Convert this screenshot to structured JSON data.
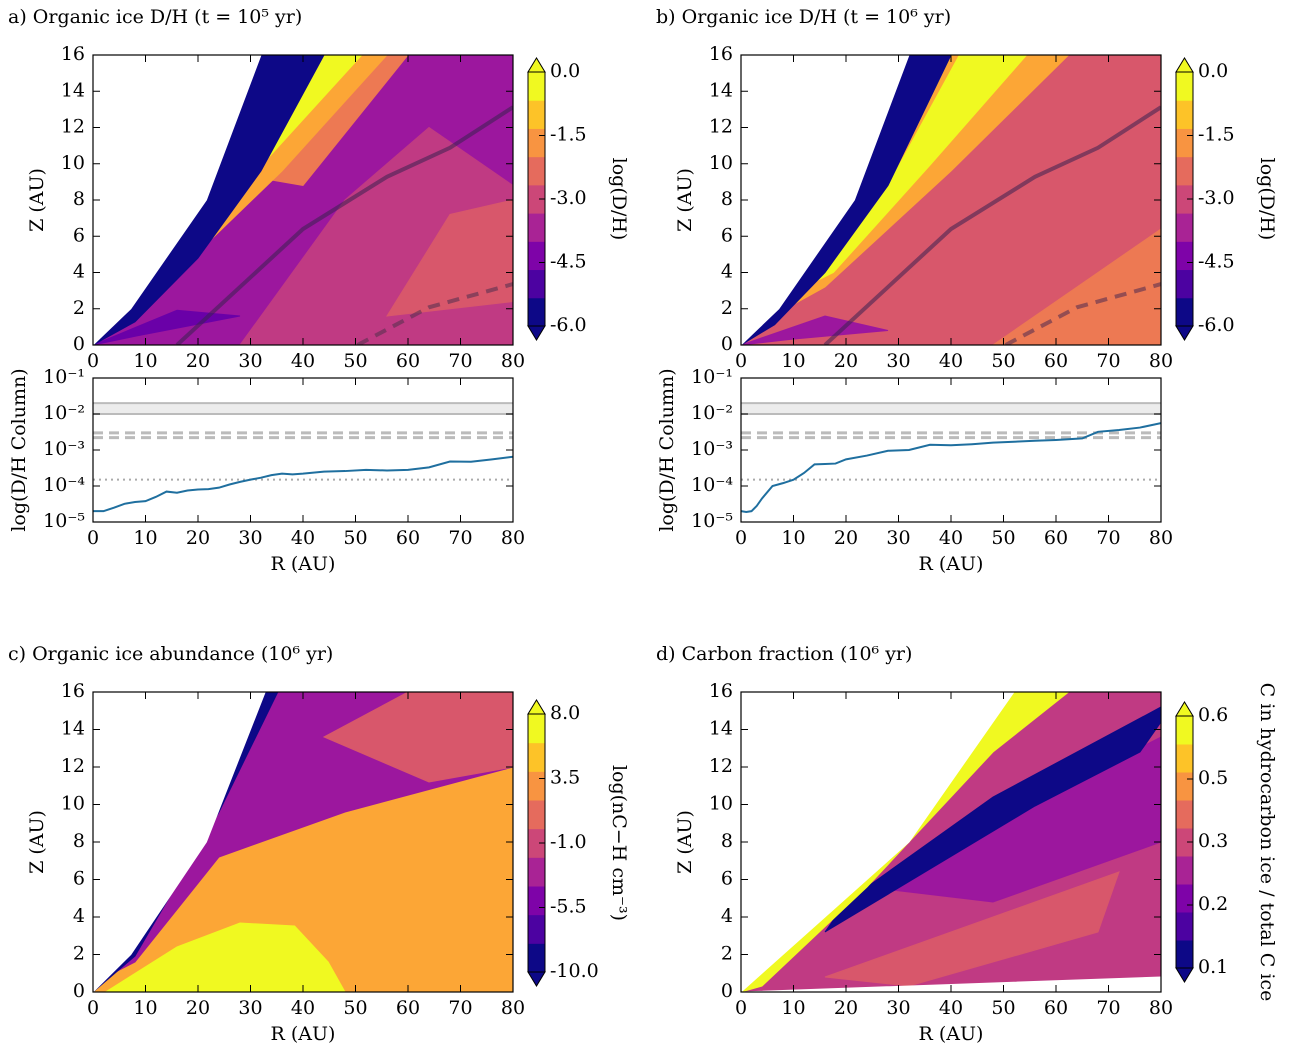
{
  "chart_data": [
    {
      "type": "contour",
      "title": "a) Organic ice D/H (t = 10⁵ yr)",
      "ylabel": "Z (AU)",
      "xlim": [
        0,
        80
      ],
      "ylim": [
        0,
        16
      ],
      "xticks": [
        0,
        10,
        20,
        30,
        40,
        50,
        60,
        70,
        80
      ],
      "yticks": [
        0,
        2,
        4,
        6,
        8,
        10,
        12,
        14,
        16
      ],
      "colorbar_label": "log(D/H)",
      "clim": [
        -6,
        0
      ],
      "colorbar_ticks": [
        {
          "value": 0,
          "label": "0.0"
        },
        -1.5,
        {
          "value": -3,
          "label": "-3.0"
        },
        -4.5,
        {
          "value": -6,
          "label": "-6.0"
        }
      ],
      "colormap": [
        "#0d0887",
        "#4c02a1",
        "#7e03a8",
        "#a92395",
        "#cc4778",
        "#e56b5d",
        "#f89441",
        "#fdc328",
        "#f0f921"
      ]
    },
    {
      "type": "line",
      "xlabel": "R (AU)",
      "ylabel": "log(D/H Column)",
      "xlim": [
        0,
        80
      ],
      "ylim": [
        1e-05,
        0.1
      ],
      "log_y": true,
      "xticks": [
        0,
        10,
        20,
        30,
        40,
        50,
        60,
        70,
        80
      ],
      "yticks": [
        {
          "value": 0.1,
          "label": "10⁻¹"
        },
        {
          "value": 0.01,
          "label": "10⁻²"
        },
        {
          "value": 0.001,
          "label": "10⁻³"
        },
        {
          "value": 0.0001,
          "label": "10⁻⁴"
        },
        {
          "value": 1e-05,
          "label": "10⁻⁵"
        }
      ],
      "color": "#1f6f9f",
      "reference_lines": [
        {
          "value": 0.02,
          "style": "solid"
        },
        {
          "value": 0.01,
          "style": "solid"
        },
        {
          "value": 0.003,
          "style": "dashed"
        },
        {
          "value": 0.0022,
          "style": "dashed"
        },
        {
          "value": 0.00015,
          "style": "dotted"
        }
      ],
      "x": [
        0,
        2,
        4,
        6,
        8,
        10,
        12,
        14,
        16,
        18,
        20,
        22,
        24,
        26,
        28,
        30,
        32,
        34,
        36,
        38,
        40,
        44,
        48,
        52,
        56,
        60,
        64,
        68,
        72,
        76,
        80
      ],
      "values": [
        2e-05,
        2e-05,
        2.5e-05,
        3.2e-05,
        3.6e-05,
        3.8e-05,
        5e-05,
        7e-05,
        6.5e-05,
        7.5e-05,
        8e-05,
        8.2e-05,
        9e-05,
        0.00011,
        0.00013,
        0.00015,
        0.00017,
        0.0002,
        0.00022,
        0.00021,
        0.00022,
        0.00025,
        0.00026,
        0.00028,
        0.00027,
        0.00028,
        0.00033,
        0.00048,
        0.00047,
        0.00055,
        0.00065
      ]
    },
    {
      "type": "contour",
      "title": "b) Organic ice D/H (t = 10⁶ yr)",
      "ylabel": "Z (AU)",
      "xlim": [
        0,
        80
      ],
      "ylim": [
        0,
        16
      ],
      "xticks": [
        0,
        10,
        20,
        30,
        40,
        50,
        60,
        70,
        80
      ],
      "yticks": [
        0,
        2,
        4,
        6,
        8,
        10,
        12,
        14,
        16
      ],
      "colorbar_label": "log(D/H)",
      "clim": [
        -6,
        0
      ],
      "colorbar_ticks": [
        {
          "value": 0,
          "label": "0.0"
        },
        -1.5,
        {
          "value": -3,
          "label": "-3.0"
        },
        -4.5,
        {
          "value": -6,
          "label": "-6.0"
        }
      ],
      "colormap": [
        "#0d0887",
        "#4c02a1",
        "#7e03a8",
        "#a92395",
        "#cc4778",
        "#e56b5d",
        "#f89441",
        "#fdc328",
        "#f0f921"
      ]
    },
    {
      "type": "line",
      "xlabel": "R (AU)",
      "ylabel": "log(D/H Column)",
      "xlim": [
        0,
        80
      ],
      "ylim": [
        1e-05,
        0.1
      ],
      "log_y": true,
      "xticks": [
        0,
        10,
        20,
        30,
        40,
        50,
        60,
        70,
        80
      ],
      "yticks": [
        {
          "value": 0.1,
          "label": "10⁻¹"
        },
        {
          "value": 0.01,
          "label": "10⁻²"
        },
        {
          "value": 0.001,
          "label": "10⁻³"
        },
        {
          "value": 0.0001,
          "label": "10⁻⁴"
        },
        {
          "value": 1e-05,
          "label": "10⁻⁵"
        }
      ],
      "color": "#1f6f9f",
      "reference_lines": [
        {
          "value": 0.02,
          "style": "solid"
        },
        {
          "value": 0.01,
          "style": "solid"
        },
        {
          "value": 0.003,
          "style": "dashed"
        },
        {
          "value": 0.0022,
          "style": "dashed"
        },
        {
          "value": 0.00015,
          "style": "dotted"
        }
      ],
      "x": [
        0,
        1,
        2,
        3,
        4,
        6,
        8,
        10,
        12,
        14,
        16,
        18,
        20,
        24,
        28,
        32,
        36,
        40,
        44,
        48,
        52,
        56,
        60,
        65,
        68,
        72,
        76,
        80
      ],
      "values": [
        2e-05,
        1.9e-05,
        2e-05,
        2.8e-05,
        4.5e-05,
        0.0001,
        0.00012,
        0.00015,
        0.00023,
        0.0004,
        0.00041,
        0.00042,
        0.00055,
        0.0007,
        0.00095,
        0.001,
        0.0014,
        0.00135,
        0.00145,
        0.0016,
        0.0017,
        0.0018,
        0.0019,
        0.0021,
        0.0032,
        0.0036,
        0.0042,
        0.0056
      ]
    },
    {
      "type": "contour",
      "title": "c) Organic ice abundance (10⁶ yr)",
      "xlabel": "R (AU)",
      "ylabel": "Z (AU)",
      "xlim": [
        0,
        80
      ],
      "ylim": [
        0,
        16
      ],
      "xticks": [
        0,
        10,
        20,
        30,
        40,
        50,
        60,
        70,
        80
      ],
      "yticks": [
        0,
        2,
        4,
        6,
        8,
        10,
        12,
        14,
        16
      ],
      "colorbar_label": "log(nC−H cm⁻³)",
      "clim": [
        -10,
        8
      ],
      "colorbar_ticks": [
        {
          "value": 8,
          "label": "8.0"
        },
        3.5,
        {
          "value": -1,
          "label": "-1.0"
        },
        -5.5,
        {
          "value": -10,
          "label": "-10.0"
        }
      ],
      "colormap": [
        "#0d0887",
        "#4c02a1",
        "#7e03a8",
        "#a92395",
        "#cc4778",
        "#e56b5d",
        "#f89441",
        "#fdc328",
        "#f0f921"
      ]
    },
    {
      "type": "contour",
      "title": "d) Carbon fraction (10⁶ yr)",
      "xlabel": "R (AU)",
      "ylabel": "Z (AU)",
      "xlim": [
        0,
        80
      ],
      "ylim": [
        0,
        16
      ],
      "xticks": [
        0,
        10,
        20,
        30,
        40,
        50,
        60,
        70,
        80
      ],
      "yticks": [
        0,
        2,
        4,
        6,
        8,
        10,
        12,
        14,
        16
      ],
      "colorbar_label": "C in hydrocarbon ice / total C ice",
      "clim": [
        0.1,
        0.6
      ],
      "colorbar_ticks": [
        0.6,
        {
          "value": 0.475,
          "label": "0.5"
        },
        {
          "value": 0.35,
          "label": "0.3"
        },
        {
          "value": 0.225,
          "label": "0.2"
        },
        0.1
      ],
      "colormap": [
        "#0d0887",
        "#4c02a1",
        "#7e03a8",
        "#a92395",
        "#cc4778",
        "#e56b5d",
        "#f89441",
        "#fdc328",
        "#f0f921"
      ]
    }
  ]
}
